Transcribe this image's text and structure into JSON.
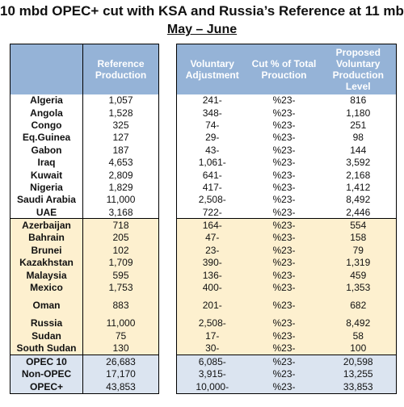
{
  "title": "10 mbd OPEC+ cut with KSA and Russia’s Reference at 11 mbd",
  "subtitle": "May – June",
  "headers": {
    "reference": "Reference Production",
    "voluntary": "Voluntary Adjustment",
    "cut_pct": "Cut % of Total Prouction",
    "proposed": "Proposed Voluntary Production Level"
  },
  "opec": [
    {
      "country": "Algeria",
      "reference": "1,057",
      "voluntary": "241-",
      "cut": "%23-",
      "proposed": "816"
    },
    {
      "country": "Angola",
      "reference": "1,528",
      "voluntary": "348-",
      "cut": "%23-",
      "proposed": "1,180"
    },
    {
      "country": "Congo",
      "reference": "325",
      "voluntary": "74-",
      "cut": "%23-",
      "proposed": "251"
    },
    {
      "country": "Eq.Guinea",
      "reference": "127",
      "voluntary": "29-",
      "cut": "%23-",
      "proposed": "98"
    },
    {
      "country": "Gabon",
      "reference": "187",
      "voluntary": "43-",
      "cut": "%23-",
      "proposed": "144"
    },
    {
      "country": "Iraq",
      "reference": "4,653",
      "voluntary": "1,061-",
      "cut": "%23-",
      "proposed": "3,592"
    },
    {
      "country": "Kuwait",
      "reference": "2,809",
      "voluntary": "641-",
      "cut": "%23-",
      "proposed": "2,168"
    },
    {
      "country": "Nigeria",
      "reference": "1,829",
      "voluntary": "417-",
      "cut": "%23-",
      "proposed": "1,412"
    },
    {
      "country": "Saudi Arabia",
      "reference": "11,000",
      "voluntary": "2,508-",
      "cut": "%23-",
      "proposed": "8,492"
    },
    {
      "country": "UAE",
      "reference": "3,168",
      "voluntary": "722-",
      "cut": "%23-",
      "proposed": "2,446"
    }
  ],
  "non_opec": [
    {
      "country": "Azerbaijan",
      "reference": "718",
      "voluntary": "164-",
      "cut": "%23-",
      "proposed": "554"
    },
    {
      "country": "Bahrain",
      "reference": "205",
      "voluntary": "47-",
      "cut": "%23-",
      "proposed": "158"
    },
    {
      "country": "Brunei",
      "reference": "102",
      "voluntary": "23-",
      "cut": "%23-",
      "proposed": "79"
    },
    {
      "country": "Kazakhstan",
      "reference": "1,709",
      "voluntary": "390-",
      "cut": "%23-",
      "proposed": "1,319"
    },
    {
      "country": "Malaysia",
      "reference": "595",
      "voluntary": "136-",
      "cut": "%23-",
      "proposed": "459"
    },
    {
      "country": "Mexico",
      "reference": "1,753",
      "voluntary": "400-",
      "cut": "%23-",
      "proposed": "1,353"
    },
    {
      "country": "Oman",
      "reference": "883",
      "voluntary": "201-",
      "cut": "%23-",
      "proposed": "682"
    },
    {
      "country": "Russia",
      "reference": "11,000",
      "voluntary": "2,508-",
      "cut": "%23-",
      "proposed": "8,492"
    },
    {
      "country": "Sudan",
      "reference": "75",
      "voluntary": "17-",
      "cut": "%23-",
      "proposed": "58"
    },
    {
      "country": "South Sudan",
      "reference": "130",
      "voluntary": "30-",
      "cut": "%23-",
      "proposed": "100"
    }
  ],
  "totals": [
    {
      "country": "OPEC 10",
      "reference": "26,683",
      "voluntary": "6,085-",
      "cut": "%23-",
      "proposed": "20,598"
    },
    {
      "country": "Non-OPEC",
      "reference": "17,170",
      "voluntary": "3,915-",
      "cut": "%23-",
      "proposed": "13,255"
    },
    {
      "country": "OPEC+",
      "reference": "43,853",
      "voluntary": "10,000-",
      "cut": "%23-",
      "proposed": "33,853"
    }
  ],
  "colors": {
    "header": "#95b3d7",
    "non_opec_bg": "#fdf0cf",
    "totals_bg": "#dbe4f0"
  }
}
